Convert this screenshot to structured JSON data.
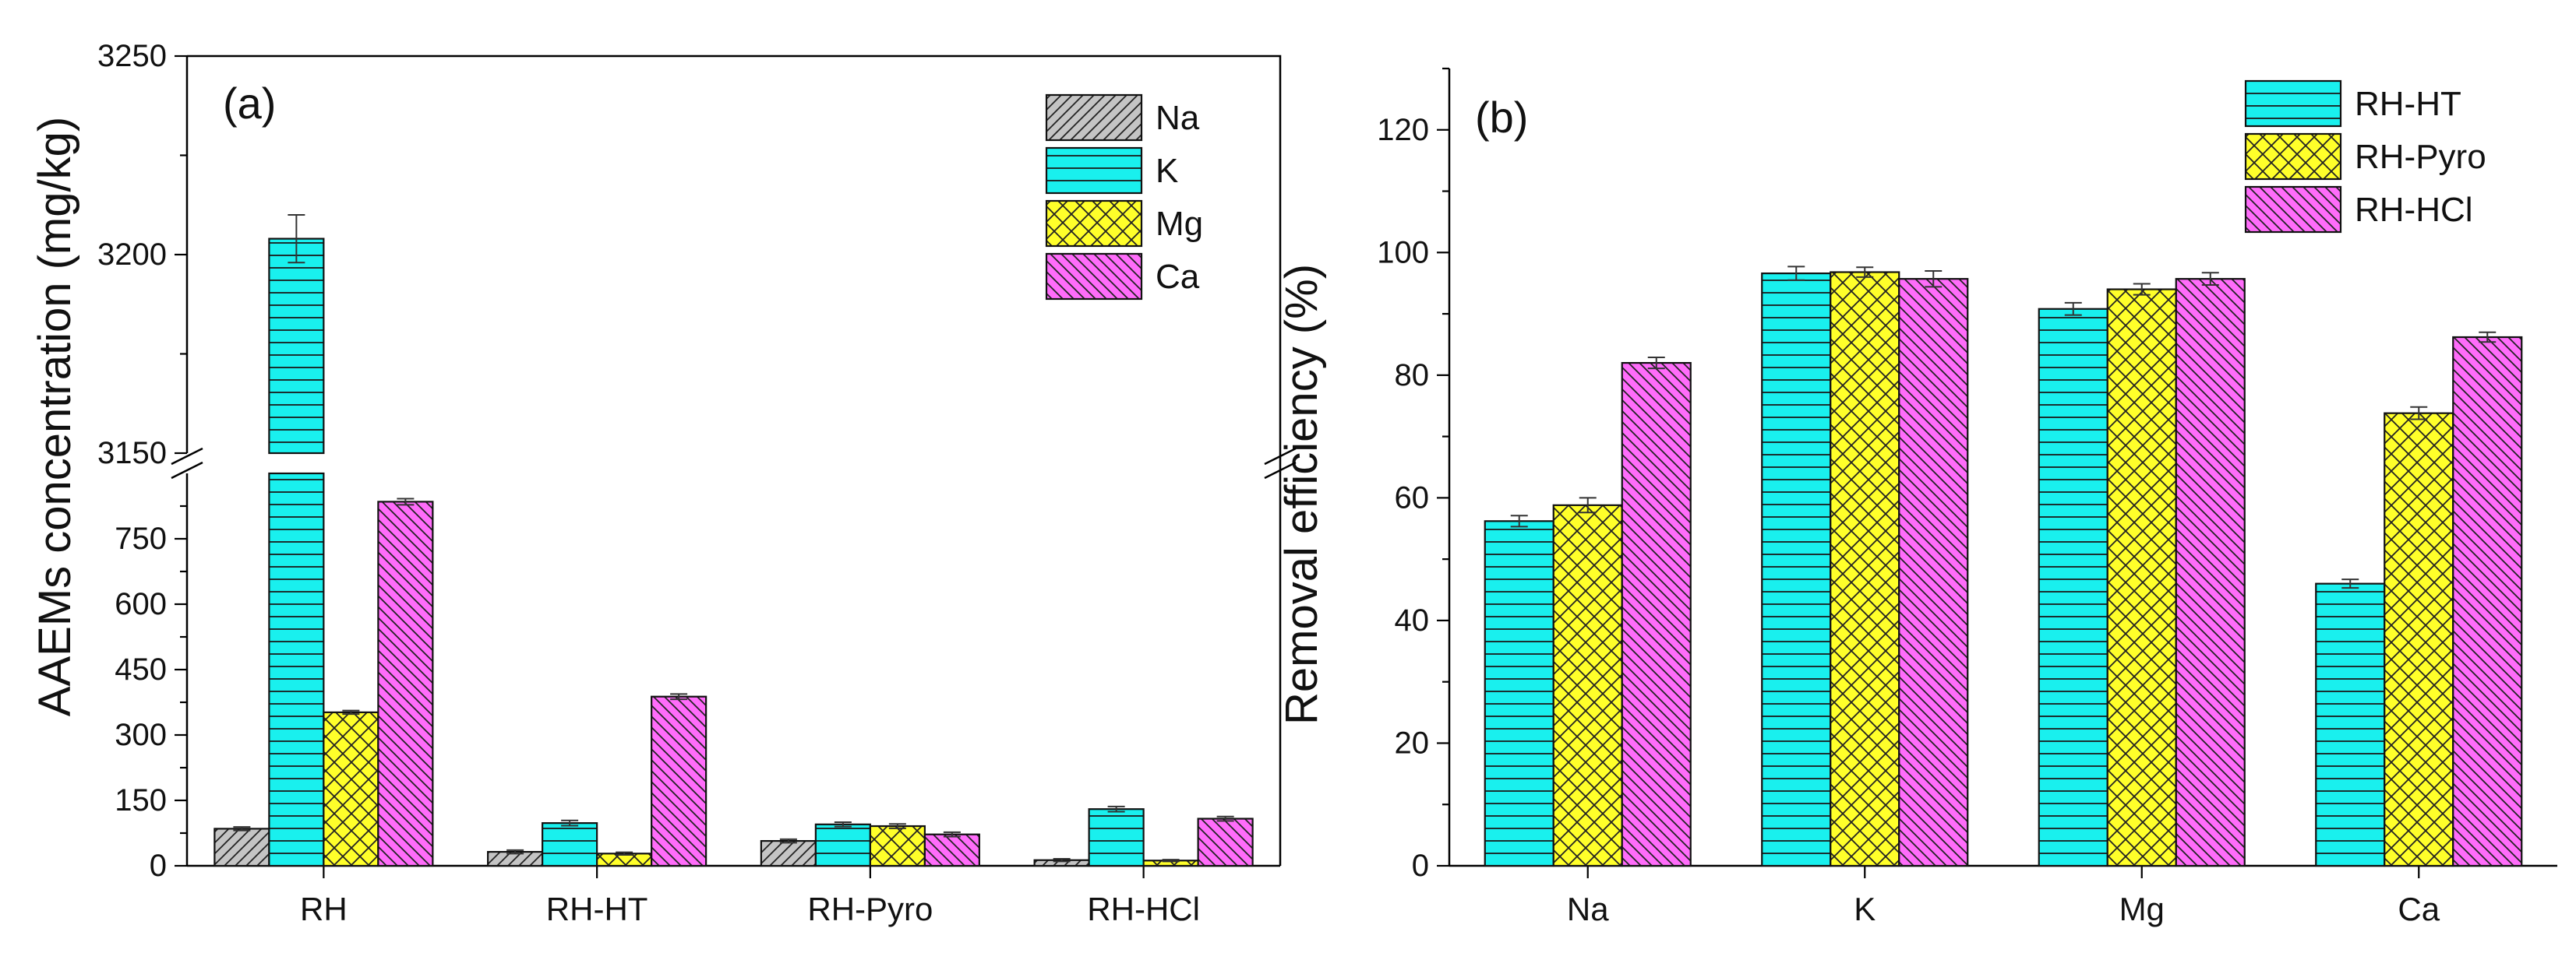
{
  "colors": {
    "Na": "#c4c4c4",
    "K": "#19f0ee",
    "Mg": "#ffff2a",
    "Ca": "#ff6cfa",
    "axis": "#000000"
  },
  "chart_data": [
    {
      "id": "a",
      "panel_label": "(a)",
      "type": "bar",
      "ylabel": "AAEMs concentration (mg/kg)",
      "categories": [
        "RH",
        "RH-HT",
        "RH-Pyro",
        "RH-HCl"
      ],
      "series": [
        {
          "name": "Na",
          "pattern": "diag-right",
          "values": [
            85,
            32,
            57,
            13
          ],
          "errors": [
            4,
            4,
            4,
            3
          ]
        },
        {
          "name": "K",
          "pattern": "horiz",
          "values": [
            3204,
            98,
            95,
            130
          ],
          "errors": [
            6,
            6,
            5,
            6
          ]
        },
        {
          "name": "Mg",
          "pattern": "cross",
          "values": [
            352,
            28,
            91,
            12
          ],
          "errors": [
            4,
            3,
            5,
            2
          ]
        },
        {
          "name": "Ca",
          "pattern": "diag-left",
          "values": [
            835,
            388,
            72,
            108
          ],
          "errors": [
            7,
            6,
            5,
            5
          ]
        }
      ],
      "y_broken": true,
      "y_lower_range": [
        0,
        900
      ],
      "y_upper_range": [
        3150,
        3250
      ],
      "yticks_lower": [
        "0",
        "150",
        "300",
        "450",
        "600",
        "750"
      ],
      "yticks_upper": [
        "3150",
        "3200",
        "3250"
      ],
      "legend_position": "top-right"
    },
    {
      "id": "b",
      "panel_label": "(b)",
      "type": "bar",
      "ylabel": "Removal efficiency (%)",
      "categories": [
        "Na",
        "K",
        "Mg",
        "Ca"
      ],
      "series": [
        {
          "name": "RH-HT",
          "pattern": "horiz",
          "colorKey": "K",
          "values": [
            56.2,
            96.6,
            90.8,
            46.0
          ],
          "errors": [
            0.9,
            1.1,
            1.0,
            0.7
          ]
        },
        {
          "name": "RH-Pyro",
          "pattern": "cross",
          "colorKey": "Mg",
          "values": [
            58.8,
            96.8,
            94.0,
            73.8
          ],
          "errors": [
            1.2,
            0.8,
            0.9,
            1.0
          ]
        },
        {
          "name": "RH-HCl",
          "pattern": "diag-left",
          "colorKey": "Ca",
          "values": [
            82.0,
            95.7,
            95.7,
            86.2
          ],
          "errors": [
            0.9,
            1.3,
            1.0,
            0.8
          ]
        }
      ],
      "ylim": [
        0,
        130
      ],
      "yticks": [
        "0",
        "20",
        "40",
        "60",
        "80",
        "100",
        "120"
      ],
      "legend_position": "top-right"
    }
  ]
}
